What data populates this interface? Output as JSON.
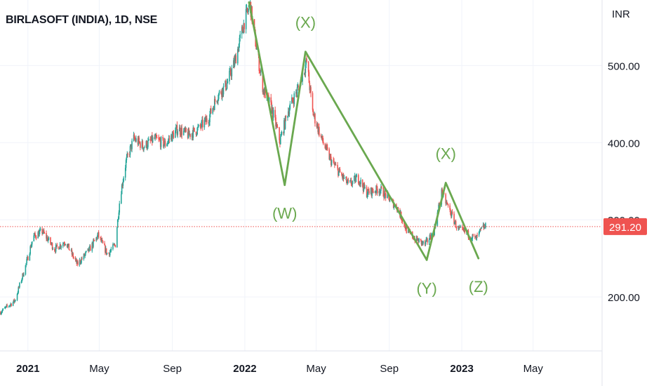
{
  "header": {
    "title": "BIRLASOFT (INDIA), 1D, NSE",
    "currency": "INR"
  },
  "colors": {
    "up": "#26a69a",
    "down": "#ef5350",
    "wave": "#6aa84f",
    "price_line": "#ef5350",
    "grid": "#f0f3fa"
  },
  "price_badge": {
    "value": "291.20"
  },
  "chart_data": {
    "type": "candlestick",
    "symbol": "BIRLASOFT (INDIA)",
    "interval": "1D",
    "exchange": "NSE",
    "ylim": [
      130,
      585
    ],
    "y_ticks": [
      {
        "value": 200,
        "label": "200.00"
      },
      {
        "value": 300,
        "label": "300.00"
      },
      {
        "value": 400,
        "label": "400.00"
      },
      {
        "value": 500,
        "label": "500.00"
      }
    ],
    "x_ticks": [
      {
        "date": "2021-01-01",
        "label": "2021"
      },
      {
        "date": "2021-05-01",
        "label": "May"
      },
      {
        "date": "2021-09-01",
        "label": "Sep"
      },
      {
        "date": "2022-01-01",
        "label": "2022"
      },
      {
        "date": "2022-05-01",
        "label": "May"
      },
      {
        "date": "2022-09-01",
        "label": "Sep"
      },
      {
        "date": "2023-01-01",
        "label": "2023"
      },
      {
        "date": "2023-05-01",
        "label": "May"
      }
    ],
    "last_price": 291.2,
    "price_path": [
      [
        "2020-11-15",
        180
      ],
      [
        "2020-12-10",
        195
      ],
      [
        "2020-12-28",
        240
      ],
      [
        "2021-01-10",
        278
      ],
      [
        "2021-01-25",
        285
      ],
      [
        "2021-02-15",
        262
      ],
      [
        "2021-03-05",
        272
      ],
      [
        "2021-03-25",
        242
      ],
      [
        "2021-04-15",
        262
      ],
      [
        "2021-04-29",
        280
      ],
      [
        "2021-05-15",
        255
      ],
      [
        "2021-05-28",
        268
      ],
      [
        "2021-06-05",
        330
      ],
      [
        "2021-06-15",
        375
      ],
      [
        "2021-06-28",
        405
      ],
      [
        "2021-07-15",
        395
      ],
      [
        "2021-08-01",
        405
      ],
      [
        "2021-08-20",
        398
      ],
      [
        "2021-09-10",
        418
      ],
      [
        "2021-09-28",
        410
      ],
      [
        "2021-10-15",
        418
      ],
      [
        "2021-11-01",
        432
      ],
      [
        "2021-11-15",
        460
      ],
      [
        "2021-12-01",
        475
      ],
      [
        "2021-12-15",
        505
      ],
      [
        "2022-01-01",
        560
      ],
      [
        "2022-01-10",
        578
      ],
      [
        "2022-01-20",
        525
      ],
      [
        "2022-02-01",
        468
      ],
      [
        "2022-02-15",
        445
      ],
      [
        "2022-03-01",
        402
      ],
      [
        "2022-03-15",
        442
      ],
      [
        "2022-03-31",
        470
      ],
      [
        "2022-04-15",
        505
      ],
      [
        "2022-04-25",
        440
      ],
      [
        "2022-05-10",
        405
      ],
      [
        "2022-05-25",
        378
      ],
      [
        "2022-06-10",
        360
      ],
      [
        "2022-06-25",
        345
      ],
      [
        "2022-07-10",
        355
      ],
      [
        "2022-07-25",
        335
      ],
      [
        "2022-08-15",
        340
      ],
      [
        "2022-08-31",
        328
      ],
      [
        "2022-09-15",
        315
      ],
      [
        "2022-10-01",
        285
      ],
      [
        "2022-10-15",
        275
      ],
      [
        "2022-10-31",
        268
      ],
      [
        "2022-11-15",
        285
      ],
      [
        "2022-11-28",
        335
      ],
      [
        "2022-12-10",
        315
      ],
      [
        "2022-12-25",
        288
      ],
      [
        "2023-01-10",
        282
      ],
      [
        "2023-01-25",
        275
      ],
      [
        "2023-02-05",
        290
      ],
      [
        "2023-02-12",
        291.2
      ]
    ],
    "annotations": [
      {
        "label": "(W)",
        "date": "2022-03-09",
        "price": 345,
        "position": "below"
      },
      {
        "label": "(X)",
        "date": "2022-04-13",
        "price": 518,
        "position": "above"
      },
      {
        "label": "(Y)",
        "date": "2022-11-03",
        "price": 248,
        "position": "below"
      },
      {
        "label": "(X)",
        "date": "2022-12-05",
        "price": 348,
        "position": "above"
      },
      {
        "label": "(Z)",
        "date": "2023-01-29",
        "price": 250,
        "position": "below"
      }
    ],
    "wave_lines": [
      [
        [
          "2022-01-08",
          582
        ],
        [
          "2022-03-09",
          345
        ],
        [
          "2022-04-13",
          518
        ],
        [
          "2022-11-03",
          248
        ]
      ],
      [
        [
          "2022-11-03",
          248
        ],
        [
          "2022-12-05",
          348
        ],
        [
          "2023-01-29",
          250
        ]
      ]
    ]
  }
}
